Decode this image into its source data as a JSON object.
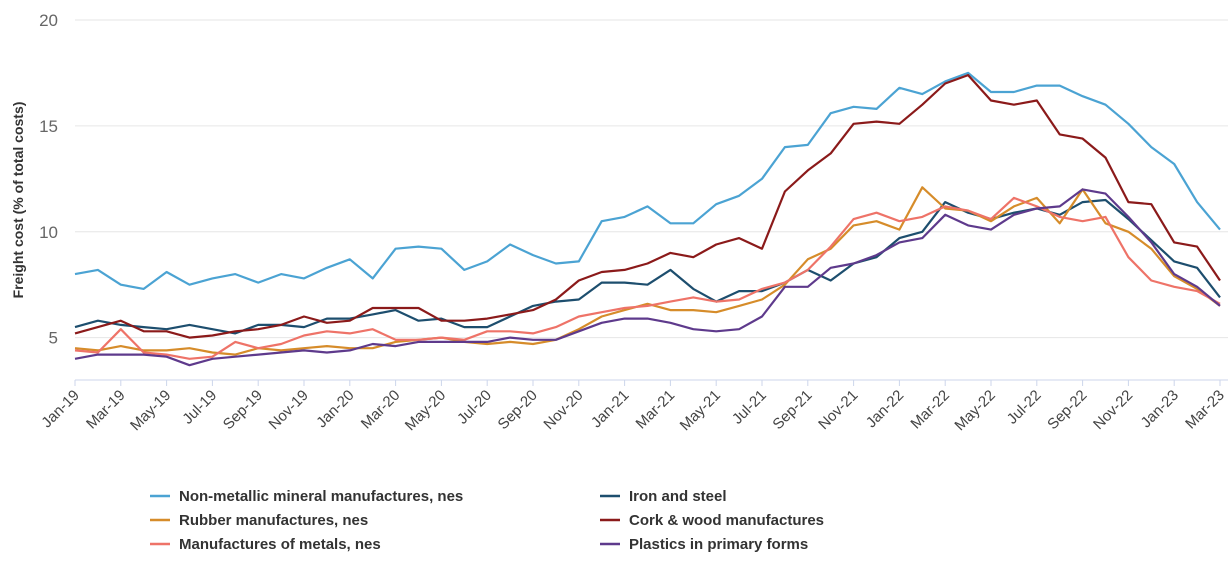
{
  "chart_data": {
    "type": "line",
    "y_label": "Freight cost (% of total costs)",
    "categories": [
      "Jan-19",
      null,
      "Mar-19",
      null,
      "May-19",
      null,
      "Jul-19",
      null,
      "Sep-19",
      null,
      "Nov-19",
      null,
      "Jan-20",
      null,
      "Mar-20",
      null,
      "May-20",
      null,
      "Jul-20",
      null,
      "Sep-20",
      null,
      "Nov-20",
      null,
      "Jan-21",
      null,
      "Mar-21",
      null,
      "May-21",
      null,
      "Jul-21",
      null,
      "Sep-21",
      null,
      "Nov-21",
      null,
      "Jan-22",
      null,
      "Mar-22",
      null,
      "May-22",
      null,
      "Jul-22",
      null,
      "Sep-22",
      null,
      "Nov-22",
      null,
      "Jan-23",
      null,
      "Mar-23"
    ],
    "ylim": [
      3,
      20
    ],
    "yticks": [
      5,
      10,
      15,
      20
    ],
    "grid": true,
    "legend": "bottom",
    "series": [
      {
        "name": "Non-metallic mineral manufactures, nes",
        "color": "#4ba3d3",
        "values": [
          8.0,
          8.2,
          7.5,
          7.3,
          8.1,
          7.5,
          7.8,
          8.0,
          7.6,
          8.0,
          7.8,
          8.3,
          8.7,
          7.8,
          9.2,
          9.3,
          9.2,
          8.2,
          8.6,
          9.4,
          8.9,
          8.5,
          8.6,
          10.5,
          10.7,
          11.2,
          10.4,
          10.4,
          11.3,
          11.7,
          12.5,
          14.0,
          14.1,
          15.6,
          15.9,
          15.8,
          16.8,
          16.5,
          17.1,
          17.5,
          16.6,
          16.6,
          16.9,
          16.9,
          16.4,
          16.0,
          15.1,
          14.0,
          13.2,
          11.4,
          10.1
        ]
      },
      {
        "name": "Iron and steel",
        "color": "#1d4e6e",
        "values": [
          5.5,
          5.8,
          5.6,
          5.5,
          5.4,
          5.6,
          5.4,
          5.2,
          5.6,
          5.6,
          5.5,
          5.9,
          5.9,
          6.1,
          6.3,
          5.8,
          5.9,
          5.5,
          5.5,
          6.0,
          6.5,
          6.7,
          6.8,
          7.6,
          7.6,
          7.5,
          8.2,
          7.3,
          6.7,
          7.2,
          7.2,
          7.6,
          8.2,
          7.7,
          8.5,
          8.8,
          9.7,
          10.0,
          11.4,
          10.9,
          10.6,
          10.9,
          11.1,
          10.8,
          11.4,
          11.5,
          10.6,
          9.6,
          8.6,
          8.3,
          6.9
        ]
      },
      {
        "name": "Rubber manufactures, nes",
        "color": "#d68c2a",
        "values": [
          4.5,
          4.4,
          4.6,
          4.4,
          4.4,
          4.5,
          4.3,
          4.2,
          4.5,
          4.4,
          4.5,
          4.6,
          4.5,
          4.5,
          4.8,
          4.9,
          5.0,
          4.8,
          4.7,
          4.8,
          4.7,
          4.9,
          5.4,
          6.0,
          6.3,
          6.6,
          6.3,
          6.3,
          6.2,
          6.5,
          6.8,
          7.5,
          8.7,
          9.2,
          10.3,
          10.5,
          10.1,
          12.1,
          11.1,
          11.0,
          10.5,
          11.2,
          11.6,
          10.4,
          12.0,
          10.4,
          10.0,
          9.2,
          7.9,
          7.3,
          6.5
        ]
      },
      {
        "name": "Cork & wood manufactures",
        "color": "#8b1a1a",
        "values": [
          5.2,
          5.5,
          5.8,
          5.3,
          5.3,
          5.0,
          5.1,
          5.3,
          5.4,
          5.6,
          6.0,
          5.7,
          5.8,
          6.4,
          6.4,
          6.4,
          5.8,
          5.8,
          5.9,
          6.1,
          6.3,
          6.8,
          7.7,
          8.1,
          8.2,
          8.5,
          9.0,
          8.8,
          9.4,
          9.7,
          9.2,
          11.9,
          12.9,
          13.7,
          15.1,
          15.2,
          15.1,
          16.0,
          17.0,
          17.4,
          16.2,
          16.0,
          16.2,
          14.6,
          14.4,
          13.5,
          11.4,
          11.3,
          9.5,
          9.3,
          7.7
        ]
      },
      {
        "name": "Manufactures of metals, nes",
        "color": "#ee7368",
        "values": [
          4.4,
          4.3,
          5.4,
          4.3,
          4.2,
          4.0,
          4.1,
          4.8,
          4.5,
          4.7,
          5.1,
          5.3,
          5.2,
          5.4,
          4.9,
          4.9,
          5.0,
          4.9,
          5.3,
          5.3,
          5.2,
          5.5,
          6.0,
          6.2,
          6.4,
          6.5,
          6.7,
          6.9,
          6.7,
          6.8,
          7.3,
          7.6,
          8.2,
          9.3,
          10.6,
          10.9,
          10.5,
          10.7,
          11.2,
          11.0,
          10.6,
          11.6,
          11.2,
          10.7,
          10.5,
          10.7,
          8.8,
          7.7,
          7.4,
          7.2,
          6.6
        ]
      },
      {
        "name": "Plastics in primary forms",
        "color": "#5e3a8c",
        "values": [
          4.0,
          4.2,
          4.2,
          4.2,
          4.1,
          3.7,
          4.0,
          4.1,
          4.2,
          4.3,
          4.4,
          4.3,
          4.4,
          4.7,
          4.6,
          4.8,
          4.8,
          4.8,
          4.8,
          5.0,
          4.9,
          4.9,
          5.3,
          5.7,
          5.9,
          5.9,
          5.7,
          5.4,
          5.3,
          5.4,
          6.0,
          7.4,
          7.4,
          8.3,
          8.5,
          8.9,
          9.5,
          9.7,
          10.8,
          10.3,
          10.1,
          10.8,
          11.1,
          11.2,
          12.0,
          11.8,
          10.7,
          9.5,
          8.0,
          7.4,
          6.5
        ]
      }
    ]
  }
}
